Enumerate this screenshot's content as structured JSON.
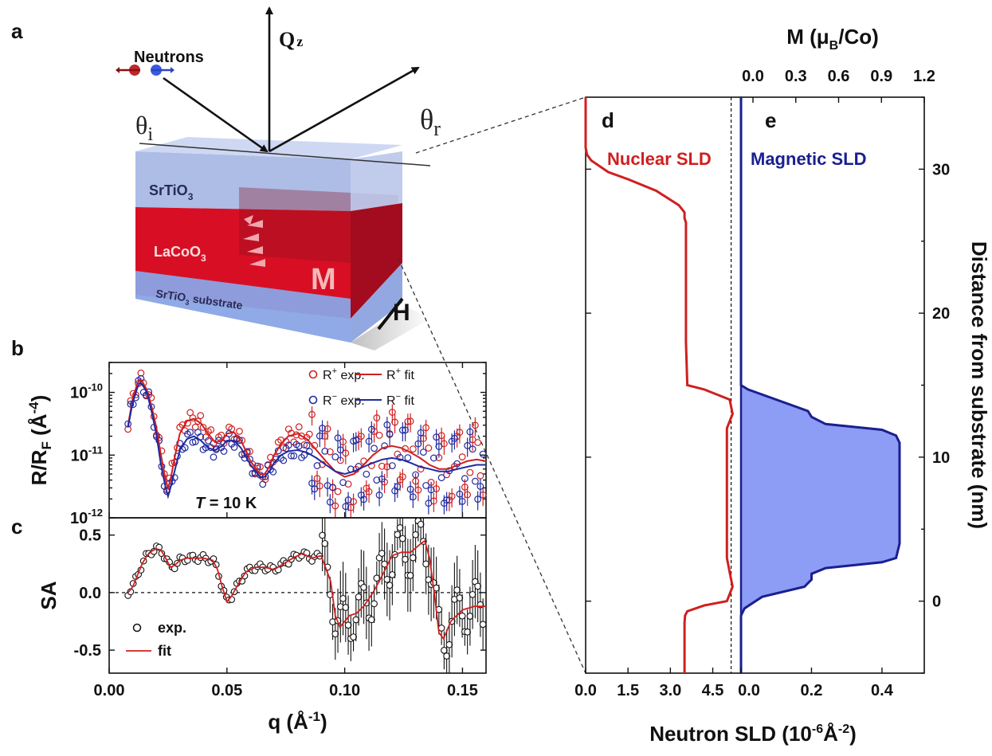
{
  "panels": {
    "a": "a",
    "b": "b",
    "c": "c",
    "d": "d",
    "e": "e"
  },
  "schematic": {
    "neutrons_label": "Neutrons",
    "qz_label": "Q",
    "qz_sub": "z",
    "theta_i": "θ",
    "theta_i_sub": "i",
    "theta_r": "θ",
    "theta_r_sub": "r",
    "layer_top": "SrTiO",
    "layer_top_sub": "3",
    "layer_mid": "LaCoO",
    "layer_mid_sub": "3",
    "layer_sub": "SrTiO",
    "layer_sub_sub": "3",
    "layer_sub_suffix": " substrate",
    "magnetization_label": "M",
    "field_label": "H"
  },
  "colors": {
    "red": "#d01f1f",
    "blue": "#1f2aa0",
    "navy": "#1a1f8f",
    "magnetic_fill": "#8d9cf5",
    "black": "#111111"
  },
  "chart_data": [
    {
      "panel": "b",
      "type": "scatter",
      "ylabel": "R/R",
      "ylabel_sub": "F",
      "ylabel_unit_open": " (Å",
      "ylabel_unit_sup": "-4",
      "ylabel_unit_close": ")",
      "yscale": "log",
      "ylim": [
        1e-12,
        3e-10
      ],
      "xlim": [
        0.0,
        0.16
      ],
      "yticks": [
        {
          "value": 1e-10,
          "base": "10",
          "exp": "-10"
        },
        {
          "value": 1e-11,
          "base": "10",
          "exp": "-11"
        },
        {
          "value": 1e-12,
          "base": "10",
          "exp": "-12"
        }
      ],
      "annotation": {
        "italic": "T",
        "rest": " = 10 K"
      },
      "legend": [
        {
          "kind": "marker",
          "text": "R",
          "sup": "+",
          "suffix": " exp.",
          "color": "#d01f1f"
        },
        {
          "kind": "line",
          "text": "R",
          "sup": "+",
          "suffix": " fit",
          "color": "#d01f1f"
        },
        {
          "kind": "marker",
          "text": "R",
          "sup": "−",
          "suffix": " exp.",
          "color": "#1f2aa0"
        },
        {
          "kind": "line",
          "text": "R",
          "sup": "−",
          "suffix": " fit",
          "color": "#1f2aa0"
        }
      ],
      "series": [
        {
          "name": "R+ fit",
          "x": [
            0.008,
            0.01,
            0.012,
            0.013,
            0.014,
            0.016,
            0.018,
            0.02,
            0.022,
            0.024,
            0.025,
            0.026,
            0.028,
            0.03,
            0.033,
            0.036,
            0.039,
            0.042,
            0.045,
            0.048,
            0.05,
            0.053,
            0.056,
            0.06,
            0.064,
            0.066,
            0.068,
            0.07,
            0.073,
            0.076,
            0.08,
            0.084,
            0.088,
            0.092,
            0.096,
            0.1,
            0.104,
            0.108,
            0.112,
            0.116,
            0.12,
            0.124,
            0.128,
            0.132,
            0.136,
            0.14,
            0.144,
            0.148,
            0.152,
            0.156,
            0.16
          ],
          "y": [
            3e-11,
            8e-11,
            1.4e-10,
            1.6e-10,
            1.5e-10,
            1.1e-10,
            6e-11,
            2.8e-11,
            1e-11,
            4e-12,
            3e-12,
            4e-12,
            1e-11,
            2.2e-11,
            3.5e-11,
            3.8e-11,
            3.2e-11,
            2.2e-11,
            1.6e-11,
            1.7e-11,
            2.2e-11,
            2.3e-11,
            1.7e-11,
            8e-12,
            5e-12,
            5e-12,
            6.5e-12,
            1e-11,
            1.5e-11,
            2e-11,
            2.2e-11,
            1.8e-11,
            1.2e-11,
            8e-12,
            5.5e-12,
            4.5e-12,
            5e-12,
            7e-12,
            1e-11,
            1.3e-11,
            1.4e-11,
            1.3e-11,
            1.1e-11,
            9e-12,
            7e-12,
            6e-12,
            6e-12,
            7e-12,
            8e-12,
            8.5e-12,
            8e-12
          ],
          "color": "#d01f1f"
        },
        {
          "name": "R− fit",
          "x": [
            0.008,
            0.01,
            0.012,
            0.013,
            0.014,
            0.016,
            0.018,
            0.02,
            0.022,
            0.024,
            0.025,
            0.026,
            0.028,
            0.03,
            0.033,
            0.036,
            0.039,
            0.042,
            0.045,
            0.048,
            0.05,
            0.053,
            0.056,
            0.06,
            0.064,
            0.066,
            0.068,
            0.07,
            0.073,
            0.076,
            0.08,
            0.084,
            0.088,
            0.092,
            0.096,
            0.1,
            0.104,
            0.108,
            0.112,
            0.116,
            0.12,
            0.124,
            0.128,
            0.132,
            0.136,
            0.14,
            0.144,
            0.148,
            0.152,
            0.156,
            0.16
          ],
          "y": [
            2.8e-11,
            7e-11,
            1.2e-10,
            1.4e-10,
            1.35e-10,
            1e-10,
            5e-11,
            2.2e-11,
            7e-12,
            3e-12,
            2.2e-12,
            3e-12,
            6e-12,
            1.2e-11,
            1.8e-11,
            2e-11,
            1.7e-11,
            1.3e-11,
            1.2e-11,
            1.4e-11,
            1.7e-11,
            1.7e-11,
            1.3e-11,
            7e-12,
            4.5e-12,
            4.5e-12,
            5.5e-12,
            7.5e-12,
            1e-11,
            1.15e-11,
            1.2e-11,
            1.1e-11,
            9e-12,
            7e-12,
            5.5e-12,
            5e-12,
            5.5e-12,
            6.5e-12,
            7.5e-12,
            8.5e-12,
            9e-12,
            8.5e-12,
            7.5e-12,
            6.5e-12,
            6e-12,
            5.5e-12,
            5.5e-12,
            6e-12,
            6.5e-12,
            7e-12,
            7e-12
          ],
          "color": "#1f2aa0"
        }
      ]
    },
    {
      "panel": "c",
      "type": "line",
      "xlabel": "q",
      "xlabel_unit_open": " (Å",
      "xlabel_unit_sup": "-1",
      "xlabel_unit_close": ")",
      "ylabel": "SA",
      "xlim": [
        0.0,
        0.16
      ],
      "ylim": [
        -0.7,
        0.65
      ],
      "xticks": [
        {
          "value": 0.0,
          "label": "0.00"
        },
        {
          "value": 0.05,
          "label": "0.05"
        },
        {
          "value": 0.1,
          "label": "0.10"
        },
        {
          "value": 0.15,
          "label": "0.15"
        }
      ],
      "yticks": [
        {
          "value": 0.5,
          "label": "0.5"
        },
        {
          "value": 0.0,
          "label": "0.0"
        },
        {
          "value": -0.5,
          "label": "-0.5"
        }
      ],
      "reference_line": 0.0,
      "legend": [
        {
          "kind": "marker",
          "text": "exp.",
          "color": "#111111"
        },
        {
          "kind": "line",
          "text": "fit",
          "color": "#d01f1f"
        }
      ],
      "series": [
        {
          "name": "fit",
          "x": [
            0.008,
            0.01,
            0.012,
            0.014,
            0.016,
            0.018,
            0.02,
            0.022,
            0.024,
            0.026,
            0.028,
            0.03,
            0.033,
            0.036,
            0.04,
            0.044,
            0.046,
            0.048,
            0.05,
            0.052,
            0.055,
            0.058,
            0.062,
            0.066,
            0.07,
            0.074,
            0.078,
            0.082,
            0.086,
            0.09,
            0.094,
            0.096,
            0.098,
            0.1,
            0.102,
            0.105,
            0.108,
            0.112,
            0.116,
            0.12,
            0.124,
            0.128,
            0.132,
            0.134,
            0.136,
            0.138,
            0.14,
            0.142,
            0.145,
            0.15,
            0.155,
            0.16
          ],
          "y": [
            0.0,
            0.05,
            0.15,
            0.25,
            0.32,
            0.36,
            0.38,
            0.37,
            0.3,
            0.22,
            0.24,
            0.28,
            0.3,
            0.3,
            0.3,
            0.28,
            0.2,
            0.05,
            -0.08,
            -0.03,
            0.08,
            0.18,
            0.22,
            0.22,
            0.2,
            0.25,
            0.3,
            0.34,
            0.3,
            0.32,
            0.1,
            -0.2,
            -0.3,
            -0.25,
            -0.2,
            -0.18,
            -0.12,
            0.0,
            0.15,
            0.32,
            0.35,
            0.35,
            0.42,
            0.45,
            0.3,
            0.0,
            -0.35,
            -0.4,
            -0.25,
            -0.15,
            -0.12,
            -0.12
          ],
          "color": "#d01f1f"
        }
      ]
    },
    {
      "panel": "d",
      "type": "line",
      "title": "Nuclear SLD",
      "xlim": [
        0.0,
        5.5
      ],
      "ylim": [
        -5,
        35
      ],
      "xticks": [
        {
          "value": 0.0,
          "label": "0.0"
        },
        {
          "value": 1.5,
          "label": "1.5"
        },
        {
          "value": 3.0,
          "label": "3.0"
        },
        {
          "value": 4.5,
          "label": "4.5"
        }
      ],
      "reference_line_x": 5.15,
      "series": [
        {
          "name": "Nuclear SLD",
          "x": [
            3.5,
            3.5,
            3.52,
            3.6,
            4.2,
            5.0,
            5.2,
            5.1,
            5.0,
            5.0,
            5.0,
            5.2,
            5.1,
            4.2,
            3.6,
            3.55,
            3.55,
            3.55,
            3.55,
            3.5,
            3.5,
            3.3,
            2.5,
            1.5,
            0.8,
            0.5,
            0.2,
            0.05,
            0.0,
            0.0
          ],
          "y": [
            -5,
            -1.5,
            -1.0,
            -0.7,
            -0.3,
            0.0,
            1.0,
            2.0,
            3.0,
            8.0,
            12.0,
            13.0,
            14.0,
            14.7,
            15.0,
            18.0,
            22.0,
            26.0,
            26.3,
            26.6,
            27.0,
            27.5,
            28.5,
            29.3,
            29.8,
            30.2,
            30.6,
            31.0,
            31.5,
            35.0
          ],
          "color": "#d01f1f"
        }
      ]
    },
    {
      "panel": "e",
      "type": "area",
      "title": "Magnetic SLD",
      "xlabel": "Neutron SLD (10",
      "xlabel_sup": "-6",
      "xlabel_unit": "Å",
      "xlabel_sup2": "-2",
      "xlabel_close": ")",
      "ylabel": "Distance from substrate (nm)",
      "top_xlabel_open": "M (μ",
      "top_xlabel_sub": "B",
      "top_xlabel_close": "/Co)",
      "xlim": [
        0.0,
        0.52
      ],
      "ylim": [
        -5,
        35
      ],
      "xticks": [
        {
          "value": 0.0,
          "label": "0.0"
        },
        {
          "value": 0.2,
          "label": "0.2"
        },
        {
          "value": 0.4,
          "label": "0.4"
        }
      ],
      "top_xticks": [
        {
          "value": 0.0,
          "label": "0.0"
        },
        {
          "value": 0.3,
          "label": "0.3"
        },
        {
          "value": 0.6,
          "label": "0.6"
        },
        {
          "value": 0.9,
          "label": "0.9"
        },
        {
          "value": 1.2,
          "label": "1.2"
        }
      ],
      "yticks": [
        {
          "value": 0,
          "label": "0"
        },
        {
          "value": 10,
          "label": "10"
        },
        {
          "value": 20,
          "label": "20"
        },
        {
          "value": 30,
          "label": "30"
        }
      ],
      "series": [
        {
          "name": "Magnetic SLD",
          "x": [
            0.0,
            0.0,
            0.01,
            0.06,
            0.18,
            0.2,
            0.2,
            0.24,
            0.4,
            0.44,
            0.45,
            0.45,
            0.44,
            0.4,
            0.24,
            0.2,
            0.19,
            0.1,
            0.02,
            0.0,
            0.0
          ],
          "y": [
            -5,
            -1.0,
            -0.5,
            0.3,
            1.0,
            1.5,
            1.9,
            2.3,
            2.7,
            3.0,
            4.0,
            11.0,
            11.5,
            11.9,
            12.3,
            12.8,
            13.2,
            14.0,
            14.7,
            15.0,
            35
          ],
          "color": "#1a1f8f",
          "fill": "#8d9cf5"
        }
      ]
    }
  ]
}
